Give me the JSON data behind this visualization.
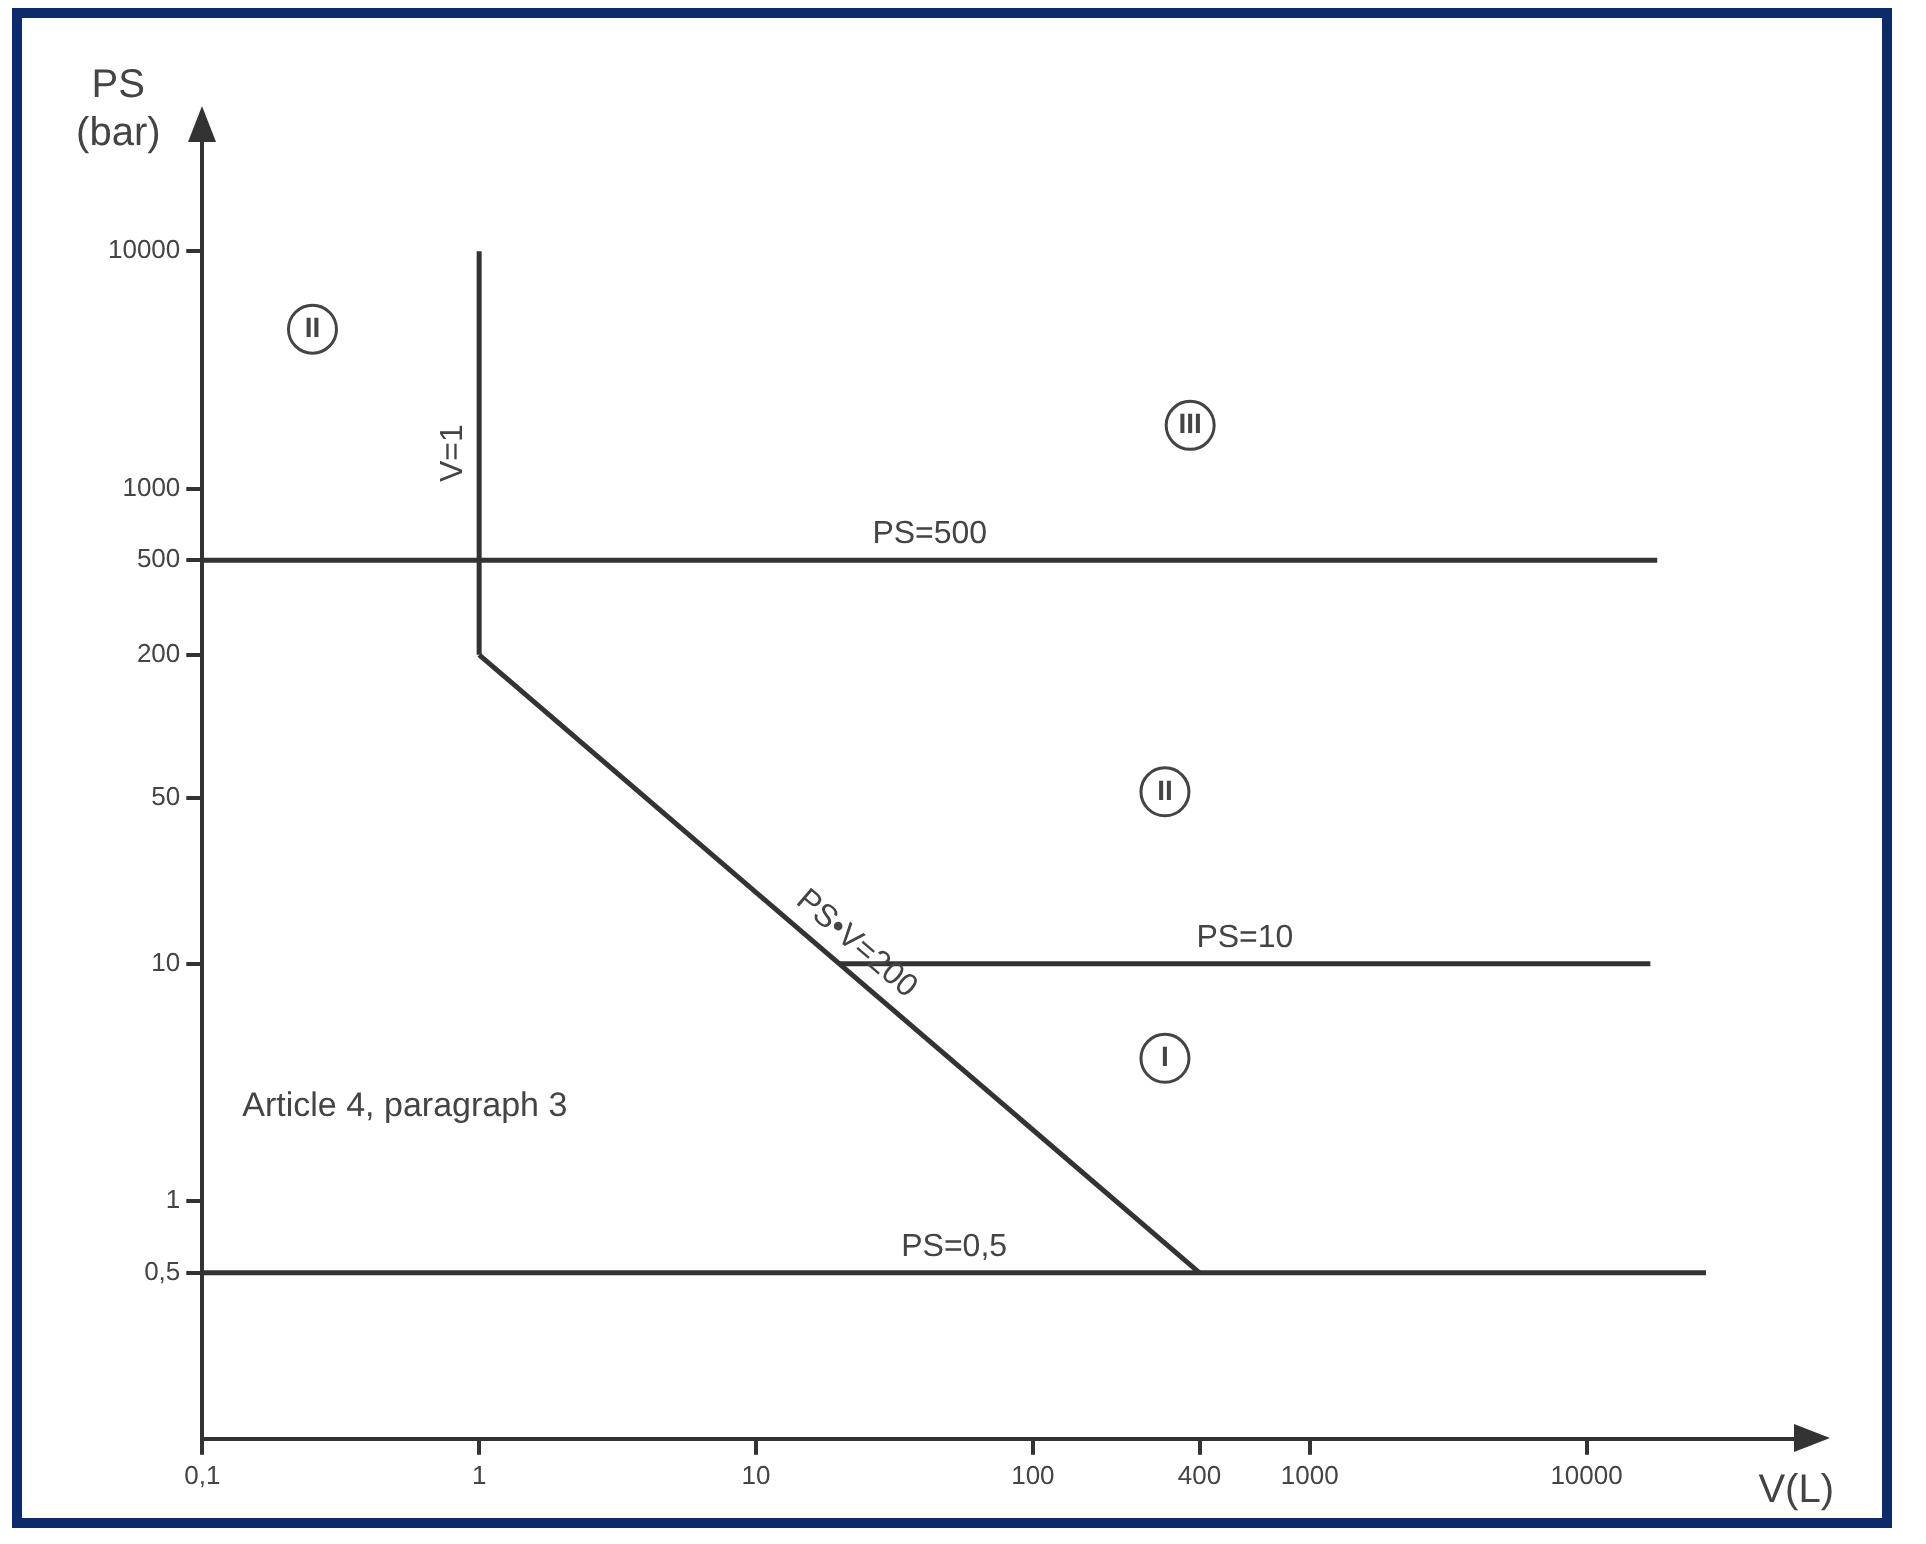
{
  "chart_data": {
    "type": "line",
    "xlabel": "V(L)",
    "ylabel": "PS (bar)",
    "log": "xy",
    "xlim": [
      0.1,
      60000
    ],
    "ylim": [
      0.1,
      30000
    ],
    "xticks": [
      {
        "value": 0.1,
        "label": "0,1"
      },
      1,
      10,
      100,
      400,
      1000,
      10000
    ],
    "yticks": [
      {
        "value": 0.5,
        "label": "0,5"
      },
      1,
      10,
      50,
      200,
      500,
      1000,
      10000
    ],
    "grid": false,
    "legend": false,
    "series": [
      {
        "name": "V=1",
        "color": "#333333",
        "x": [
          1,
          1
        ],
        "values": [
          200,
          10000
        ]
      },
      {
        "name": "PS=500",
        "color": "#333333",
        "x": [
          0.1,
          18000
        ],
        "values": [
          500,
          500
        ]
      },
      {
        "name": "PS•V=200",
        "color": "#333333",
        "x": [
          1,
          400
        ],
        "values": [
          200,
          0.5
        ]
      },
      {
        "name": "PS=10",
        "color": "#333333",
        "x": [
          20,
          17000
        ],
        "values": [
          10,
          10
        ]
      },
      {
        "name": "PS=0,5",
        "color": "#333333",
        "x": [
          0.1,
          27000
        ],
        "values": [
          0.5,
          0.5
        ]
      }
    ],
    "annotations": [
      {
        "text": "II",
        "x": 0.25,
        "y": 4700
      },
      {
        "text": "III",
        "x": 370,
        "y": 1850
      },
      {
        "text": "II",
        "x": 300,
        "y": 53
      },
      {
        "text": "I",
        "x": 300,
        "y": 4
      },
      "Article 4, paragraph 3"
    ]
  }
}
